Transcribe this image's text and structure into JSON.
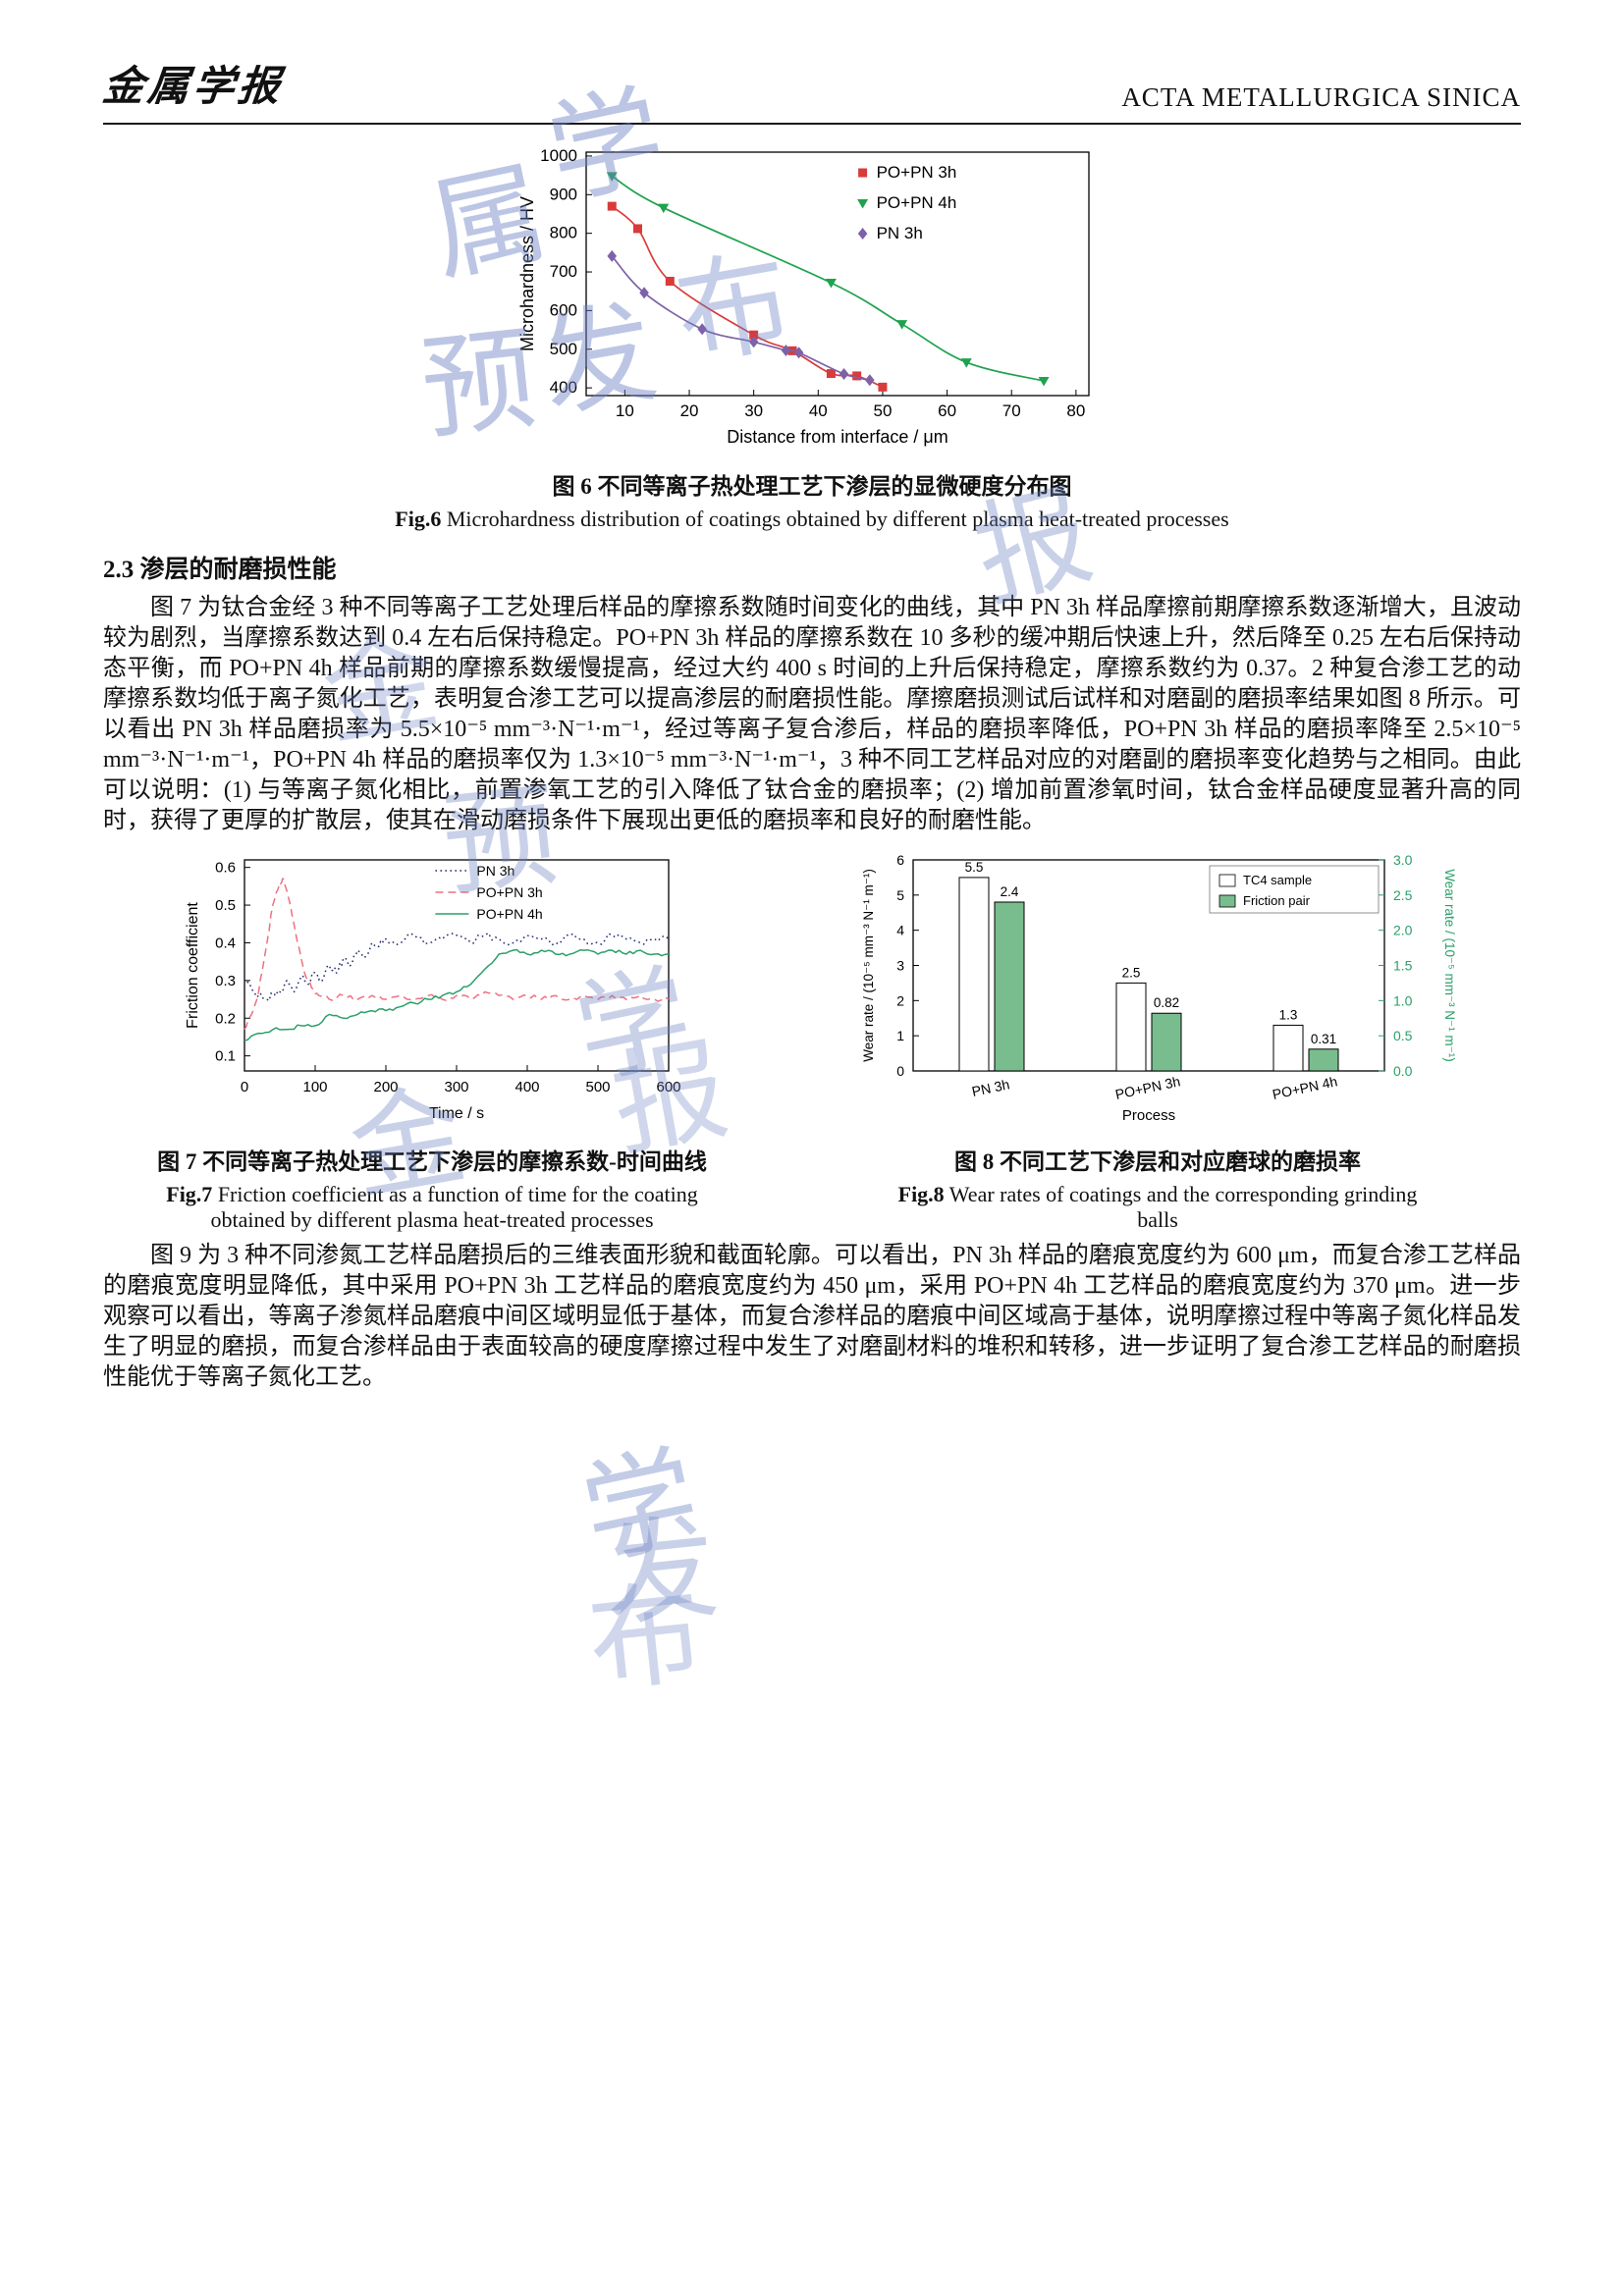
{
  "header": {
    "logo": "金属学报",
    "journal": "ACTA METALLURGICA SINICA"
  },
  "section": {
    "heading": "2.3 渗层的耐磨损性能"
  },
  "paragraphs": {
    "p1": "图 7 为钛合金经 3 种不同等离子工艺处理后样品的摩擦系数随时间变化的曲线，其中 PN 3h 样品摩擦前期摩擦系数逐渐增大，且波动较为剧烈，当摩擦系数达到 0.4 左右后保持稳定。PO+PN 3h 样品的摩擦系数在 10 多秒的缓冲期后快速上升，然后降至 0.25 左右后保持动态平衡，而 PO+PN 4h 样品前期的摩擦系数缓慢提高，经过大约 400 s 时间的上升后保持稳定，摩擦系数约为 0.37。2 种复合渗工艺的动摩擦系数均低于离子氮化工艺，表明复合渗工艺可以提高渗层的耐磨损性能。摩擦磨损测试后试样和对磨副的磨损率结果如图 8 所示。可以看出 PN 3h 样品磨损率为 5.5×10⁻⁵ mm⁻³·N⁻¹·m⁻¹，经过等离子复合渗后，样品的磨损率降低，PO+PN 3h 样品的磨损率降至 2.5×10⁻⁵ mm⁻³·N⁻¹·m⁻¹，PO+PN 4h 样品的磨损率仅为 1.3×10⁻⁵ mm⁻³·N⁻¹·m⁻¹，3 种不同工艺样品对应的对磨副的磨损率变化趋势与之相同。由此可以说明：(1) 与等离子氮化相比，前置渗氧工艺的引入降低了钛合金的磨损率；(2) 增加前置渗氧时间，钛合金样品硬度显著升高的同时，获得了更厚的扩散层，使其在滑动磨损条件下展现出更低的磨损率和良好的耐磨性能。",
    "p2": "图 9 为 3 种不同渗氮工艺样品磨损后的三维表面形貌和截面轮廓。可以看出，PN 3h 样品的磨痕宽度约为 600 μm，而复合渗工艺样品的磨痕宽度明显降低，其中采用 PO+PN 3h 工艺样品的磨痕宽度约为 450 μm，采用 PO+PN 4h 工艺样品的磨痕宽度约为 370 μm。进一步观察可以看出，等离子渗氮样品磨痕中间区域明显低于基体，而复合渗样品的磨痕中间区域高于基体，说明摩擦过程中等离子氮化样品发生了明显的磨损，而复合渗样品由于表面较高的硬度摩擦过程中发生了对磨副材料的堆积和转移，进一步证明了复合渗工艺样品的耐磨损性能优于等离子氮化工艺。"
  },
  "figures": {
    "fig6": {
      "caption_zh_label": "图 6",
      "caption_zh": "不同等离子热处理工艺下渗层的显微硬度分布图",
      "caption_en_label": "Fig.6",
      "caption_en": "Microhardness distribution of coatings obtained by different plasma heat-treated processes"
    },
    "fig7": {
      "caption_zh_label": "图 7",
      "caption_zh": "不同等离子热处理工艺下渗层的摩擦系数-时间曲线",
      "caption_en_label": "Fig.7",
      "caption_en": "Friction coefficient as a function of time for the coating obtained by different plasma heat-treated processes"
    },
    "fig8": {
      "caption_zh_label": "图 8",
      "caption_zh": "不同工艺下渗层和对应磨球的磨损率",
      "caption_en_label": "Fig.8",
      "caption_en": "Wear rates of coatings and the corresponding grinding balls"
    }
  },
  "watermark": {
    "chars": [
      "金",
      "属",
      "学",
      "报",
      "预",
      "发",
      "布"
    ]
  },
  "chart_data": [
    {
      "id": "fig6",
      "type": "line",
      "title": "",
      "xlabel": "Distance from interface / μm",
      "ylabel": "Microhardness / HV",
      "xlim": [
        4,
        82
      ],
      "ylim": [
        380,
        1010
      ],
      "xticks": [
        10,
        20,
        30,
        40,
        50,
        60,
        70,
        80
      ],
      "yticks": [
        400,
        500,
        600,
        700,
        800,
        900,
        1000
      ],
      "legend_position": "top-right-inside",
      "series": [
        {
          "name": "PO+PN 3h",
          "color": "#d93b3b",
          "marker": "square",
          "smooth": true,
          "points": [
            [
              8,
              870
            ],
            [
              12,
              812
            ],
            [
              17,
              676
            ],
            [
              30,
              537
            ],
            [
              36,
              496
            ],
            [
              42,
              437
            ],
            [
              46,
              431
            ],
            [
              50,
              402
            ]
          ]
        },
        {
          "name": "PO+PN 4h",
          "color": "#1fa24e",
          "marker": "triangle-down",
          "smooth": true,
          "points": [
            [
              8,
              948
            ],
            [
              16,
              866
            ],
            [
              42,
              672
            ],
            [
              53,
              565
            ],
            [
              63,
              466
            ],
            [
              75,
              418
            ]
          ]
        },
        {
          "name": "PN 3h",
          "color": "#7d62a8",
          "marker": "diamond",
          "smooth": true,
          "points": [
            [
              8,
              741
            ],
            [
              13,
              646
            ],
            [
              22,
              552
            ],
            [
              30,
              519
            ],
            [
              35,
              497
            ],
            [
              37,
              491
            ],
            [
              44,
              436
            ],
            [
              48,
              420
            ]
          ]
        }
      ]
    },
    {
      "id": "fig7",
      "type": "line",
      "title": "",
      "xlabel": "Time / s",
      "ylabel": "Friction coefficient",
      "xlim": [
        0,
        600
      ],
      "ylim": [
        0.06,
        0.62
      ],
      "xticks": [
        0,
        100,
        200,
        300,
        400,
        500,
        600
      ],
      "yticks": [
        0.1,
        0.2,
        0.3,
        0.4,
        0.5,
        0.6
      ],
      "legend_position": "top-right-inside",
      "series": [
        {
          "name": "PN 3h",
          "color": "#232d6e",
          "dash": "dotted",
          "noise": 0.01,
          "points": [
            [
              0,
              0.3
            ],
            [
              10,
              0.28
            ],
            [
              20,
              0.26
            ],
            [
              30,
              0.25
            ],
            [
              40,
              0.26
            ],
            [
              50,
              0.27
            ],
            [
              60,
              0.3
            ],
            [
              70,
              0.27
            ],
            [
              80,
              0.31
            ],
            [
              90,
              0.29
            ],
            [
              100,
              0.32
            ],
            [
              110,
              0.3
            ],
            [
              120,
              0.34
            ],
            [
              130,
              0.32
            ],
            [
              140,
              0.36
            ],
            [
              150,
              0.34
            ],
            [
              160,
              0.38
            ],
            [
              170,
              0.36
            ],
            [
              180,
              0.4
            ],
            [
              190,
              0.39
            ],
            [
              200,
              0.41
            ],
            [
              220,
              0.4
            ],
            [
              240,
              0.42
            ],
            [
              260,
              0.4
            ],
            [
              280,
              0.41
            ],
            [
              300,
              0.42
            ],
            [
              320,
              0.4
            ],
            [
              340,
              0.42
            ],
            [
              360,
              0.41
            ],
            [
              380,
              0.4
            ],
            [
              400,
              0.42
            ],
            [
              420,
              0.41
            ],
            [
              440,
              0.4
            ],
            [
              460,
              0.42
            ],
            [
              480,
              0.41
            ],
            [
              500,
              0.4
            ],
            [
              520,
              0.42
            ],
            [
              540,
              0.41
            ],
            [
              560,
              0.4
            ],
            [
              580,
              0.41
            ],
            [
              600,
              0.41
            ]
          ]
        },
        {
          "name": "PO+PN 3h",
          "color": "#ef7080",
          "dash": "dashed",
          "noise": 0.006,
          "points": [
            [
              0,
              0.17
            ],
            [
              10,
              0.21
            ],
            [
              20,
              0.27
            ],
            [
              30,
              0.38
            ],
            [
              40,
              0.5
            ],
            [
              50,
              0.56
            ],
            [
              55,
              0.57
            ],
            [
              65,
              0.5
            ],
            [
              75,
              0.4
            ],
            [
              85,
              0.32
            ],
            [
              95,
              0.28
            ],
            [
              105,
              0.26
            ],
            [
              120,
              0.25
            ],
            [
              140,
              0.26
            ],
            [
              160,
              0.25
            ],
            [
              180,
              0.26
            ],
            [
              200,
              0.25
            ],
            [
              220,
              0.26
            ],
            [
              240,
              0.25
            ],
            [
              260,
              0.26
            ],
            [
              280,
              0.25
            ],
            [
              300,
              0.26
            ],
            [
              320,
              0.25
            ],
            [
              340,
              0.27
            ],
            [
              360,
              0.26
            ],
            [
              380,
              0.25
            ],
            [
              400,
              0.26
            ],
            [
              420,
              0.25
            ],
            [
              440,
              0.26
            ],
            [
              460,
              0.25
            ],
            [
              480,
              0.26
            ],
            [
              500,
              0.25
            ],
            [
              520,
              0.26
            ],
            [
              540,
              0.25
            ],
            [
              560,
              0.26
            ],
            [
              580,
              0.25
            ],
            [
              600,
              0.25
            ]
          ]
        },
        {
          "name": "PO+PN 4h",
          "color": "#2aa06a",
          "dash": "solid",
          "noise": 0.005,
          "points": [
            [
              0,
              0.14
            ],
            [
              20,
              0.16
            ],
            [
              40,
              0.17
            ],
            [
              60,
              0.17
            ],
            [
              80,
              0.18
            ],
            [
              100,
              0.18
            ],
            [
              120,
              0.21
            ],
            [
              140,
              0.2
            ],
            [
              160,
              0.21
            ],
            [
              180,
              0.22
            ],
            [
              200,
              0.22
            ],
            [
              220,
              0.23
            ],
            [
              240,
              0.24
            ],
            [
              260,
              0.25
            ],
            [
              280,
              0.26
            ],
            [
              300,
              0.27
            ],
            [
              320,
              0.29
            ],
            [
              340,
              0.33
            ],
            [
              360,
              0.37
            ],
            [
              380,
              0.38
            ],
            [
              400,
              0.37
            ],
            [
              420,
              0.38
            ],
            [
              440,
              0.37
            ],
            [
              460,
              0.37
            ],
            [
              480,
              0.38
            ],
            [
              500,
              0.37
            ],
            [
              520,
              0.38
            ],
            [
              540,
              0.37
            ],
            [
              560,
              0.38
            ],
            [
              580,
              0.37
            ],
            [
              600,
              0.37
            ]
          ]
        }
      ]
    },
    {
      "id": "fig8",
      "type": "bar",
      "title": "",
      "categories": [
        "PN 3h",
        "PO+PN 3h",
        "PO+PN 4h"
      ],
      "xlabel": "Process",
      "ylabel_left": "Wear rate / (10⁻⁵ mm⁻³ N⁻¹ m⁻¹)",
      "ylabel_right": "Wear rate / (10⁻⁵ mm⁻³ N⁻¹ m⁻¹)",
      "ylim_left": [
        0,
        6
      ],
      "yticks_left": [
        0,
        1,
        2,
        3,
        4,
        5,
        6
      ],
      "ylim_right": [
        0,
        3
      ],
      "yticks_right": [
        0,
        0.5,
        1,
        1.5,
        2,
        2.5,
        3
      ],
      "right_axis_color": "#2aa06a",
      "legend_position": "top-right-inside",
      "series": [
        {
          "name": "TC4 sample",
          "axis": "left",
          "fill": "#ffffff",
          "values": [
            5.5,
            2.5,
            1.3
          ]
        },
        {
          "name": "Friction pair",
          "axis": "right",
          "fill": "#79bd8f",
          "values": [
            2.4,
            0.82,
            0.31
          ]
        }
      ]
    }
  ]
}
